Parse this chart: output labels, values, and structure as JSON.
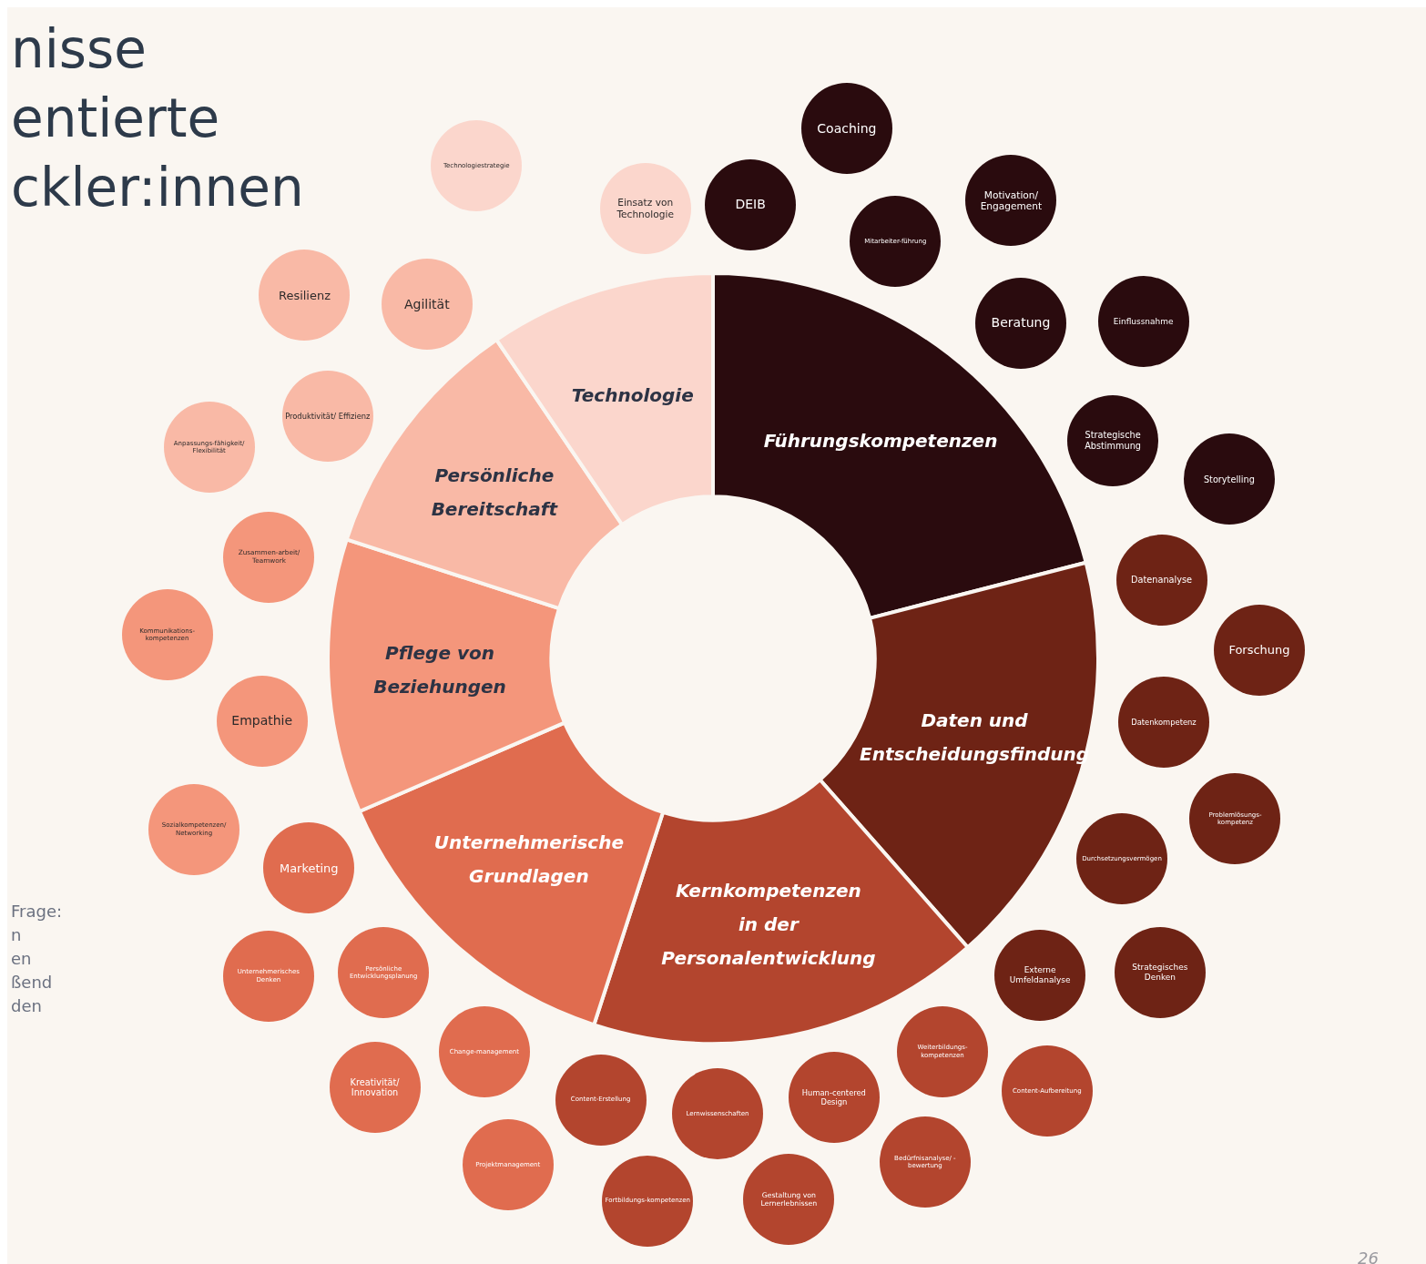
{
  "chart_data": [
    {
      "type": "donut",
      "title": "nisse\nentierte\nckler:innen",
      "categories": [
        "Führungskompetenzen",
        "Daten und Entscheidungsfindung",
        "Kernkompetenzen in der Personalentwicklung",
        "Unternehmerische Grundlagen",
        "Pflege von Beziehungen",
        "Persönliche Bereitschaft",
        "Technologie"
      ],
      "values": [
        21,
        17.5,
        16.5,
        13.5,
        11.5,
        10.5,
        9.5
      ],
      "colors": [
        "#2a0b0e",
        "#6e2315",
        "#b3452e",
        "#e06c4f",
        "#f4967b",
        "#f9b9a6",
        "#fbd6cc"
      ],
      "annotations": [
        "Frage:",
        "n",
        "en",
        "ßend",
        "den",
        "26"
      ]
    },
    {
      "type": "other",
      "color": "#2a0b0e",
      "categories": [
        "DEIB",
        "Coaching",
        "Mitarbeiter-führung",
        "Motivation/ Engagement",
        "Beratung",
        "Einflussnahme",
        "Strategische Abstimmung",
        "Storytelling"
      ]
    },
    {
      "type": "other",
      "color": "#6e2315",
      "categories": [
        "Datenanalyse",
        "Forschung",
        "Datenkompetenz",
        "Problemlösungs-kompetenz",
        "Durchsetzungsvermögen",
        "Strategisches Denken",
        "Externe Umfeldanalyse"
      ]
    },
    {
      "type": "other",
      "color": "#b3452e",
      "categories": [
        "Content-Aufbereitung",
        "Weiterbildungs-kompetenzen",
        "Bedürfnisanalyse/ -bewertung",
        "Human-centered Design",
        "Gestaltung von Lernerlebnissen",
        "Lernwissenschaften",
        "Fortbildungs-kompetenzen",
        "Content-Erstellung"
      ]
    },
    {
      "type": "other",
      "color": "#e06c4f",
      "categories": [
        "Projektmanagement",
        "Change-management",
        "Kreativität/ Innovation",
        "Persönliche Entwicklungsplanung",
        "Unternehmerisches Denken",
        "Marketing"
      ]
    },
    {
      "type": "other",
      "color": "#f4967b",
      "categories": [
        "Sozialkompetenzen/ Networking",
        "Empathie",
        "Kommunikations-kompetenzen",
        "Zusammen-arbeit/ Teamwork"
      ]
    },
    {
      "type": "other",
      "color": "#f9b9a6",
      "categories": [
        "Anpassungs-fähigkeit/ Flexibilität",
        "Produktivität/ Effizienz",
        "Resilienz",
        "Agilität"
      ]
    },
    {
      "type": "other",
      "color": "#fbd6cc",
      "categories": [
        "Technologiestrategie",
        "Einsatz von Technologie"
      ]
    }
  ]
}
